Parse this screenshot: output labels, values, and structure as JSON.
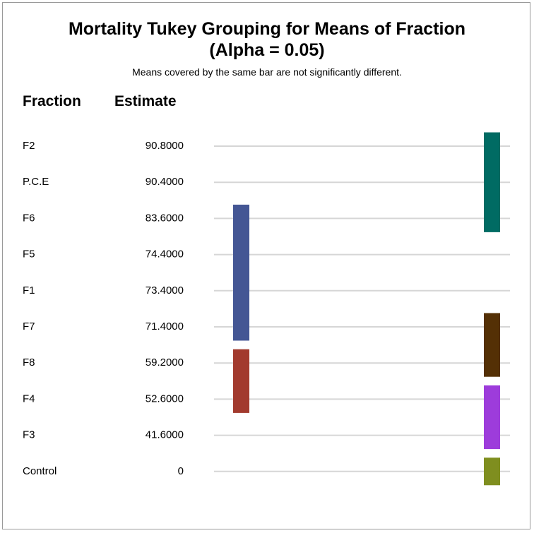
{
  "chart_data": {
    "type": "table",
    "title_lines": [
      "Mortality Tukey Grouping for Means of Fraction",
      "(Alpha = 0.05)"
    ],
    "subtitle": "Means covered by the same bar are not significantly different.",
    "columns": [
      "Fraction",
      "Estimate"
    ],
    "rows": [
      {
        "fraction": "F2",
        "estimate": "90.8000"
      },
      {
        "fraction": "P.C.E",
        "estimate": "90.4000"
      },
      {
        "fraction": "F6",
        "estimate": "83.6000"
      },
      {
        "fraction": "F5",
        "estimate": "74.4000"
      },
      {
        "fraction": "F1",
        "estimate": "73.4000"
      },
      {
        "fraction": "F7",
        "estimate": "71.4000"
      },
      {
        "fraction": "F8",
        "estimate": "59.2000"
      },
      {
        "fraction": "F4",
        "estimate": "52.6000"
      },
      {
        "fraction": "F3",
        "estimate": "41.6000"
      },
      {
        "fraction": "Control",
        "estimate": "0"
      }
    ],
    "groups": [
      {
        "column": 1,
        "from_row": 0,
        "to_row": 2,
        "color": "#006B63"
      },
      {
        "column": 0,
        "from_row": 2,
        "to_row": 5,
        "color": "#445694"
      },
      {
        "column": 1,
        "from_row": 5,
        "to_row": 6,
        "color": "#543005"
      },
      {
        "column": 0,
        "from_row": 6,
        "to_row": 7,
        "color": "#A23A2E"
      },
      {
        "column": 1,
        "from_row": 7,
        "to_row": 8,
        "color": "#9D3CDB"
      },
      {
        "column": 1,
        "from_row": 9,
        "to_row": 9,
        "color": "#7F8E1F"
      }
    ],
    "grid": true
  }
}
